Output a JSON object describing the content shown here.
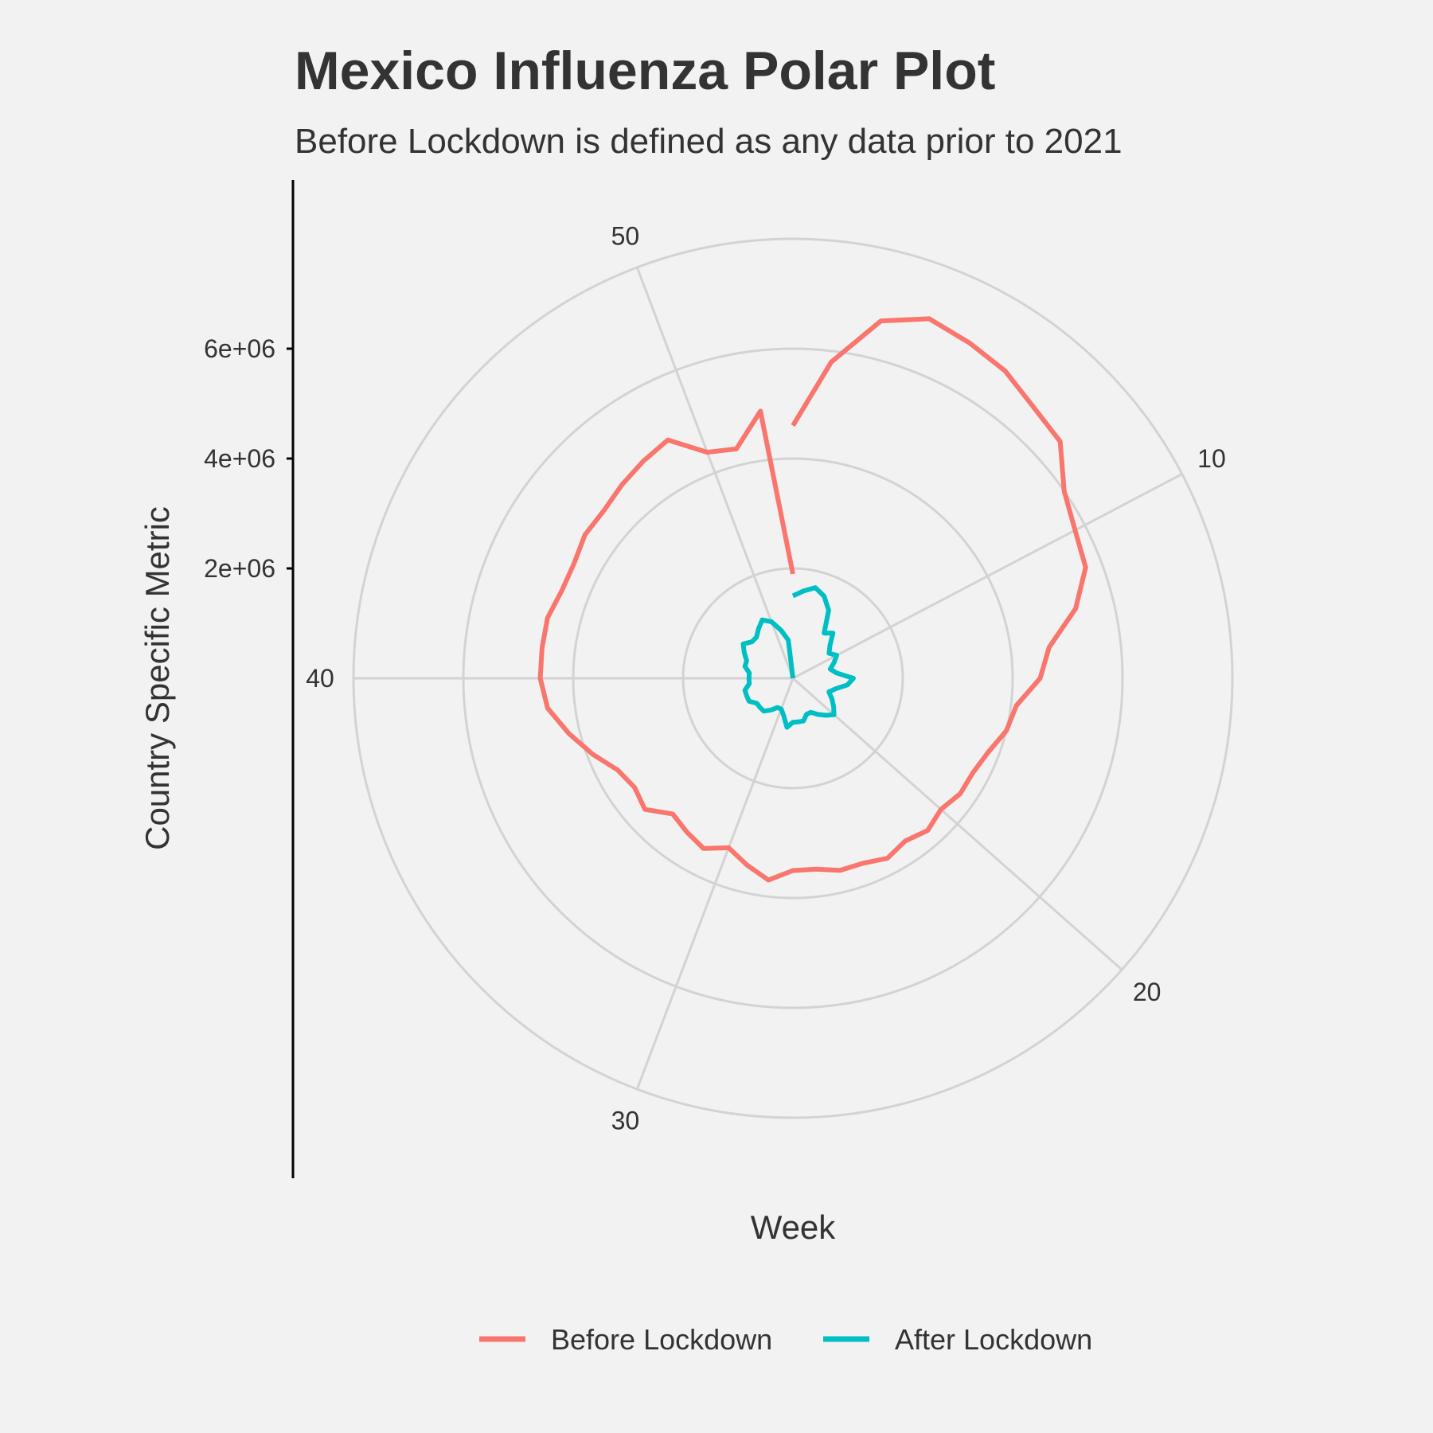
{
  "chart_data": {
    "type": "line",
    "coord": "polar",
    "title": "Mexico Influenza Polar Plot",
    "subtitle": "Before Lockdown is defined as any data prior to 2021",
    "xlabel": "Week",
    "ylabel": "Country Specific Metric",
    "theta_ticks": [
      10,
      20,
      30,
      40,
      50
    ],
    "theta_range": [
      1,
      53
    ],
    "r_ticks": [
      2000000,
      4000000,
      6000000
    ],
    "r_tick_labels": [
      "2e+06",
      "4e+06",
      "6e+06"
    ],
    "r_range": [
      0,
      8000000
    ],
    "grid": true,
    "legend_position": "bottom",
    "series": [
      {
        "name": "Before Lockdown",
        "color": "#F8766D",
        "x": [
          1,
          2,
          3,
          4,
          5,
          6,
          7,
          8,
          9,
          10,
          11,
          12,
          13,
          14,
          15,
          16,
          17,
          18,
          19,
          20,
          21,
          22,
          23,
          24,
          25,
          26,
          27,
          28,
          29,
          30,
          31,
          32,
          33,
          34,
          35,
          36,
          37,
          38,
          39,
          40,
          41,
          42,
          43,
          44,
          45,
          46,
          47,
          48,
          49,
          50,
          51,
          52,
          53
        ],
        "values": [
          4600000,
          5800000,
          6700000,
          7000000,
          6900000,
          6800000,
          6600000,
          6500000,
          6000000,
          5800000,
          5700000,
          5300000,
          4700000,
          4500000,
          4100000,
          4000000,
          3800000,
          3700000,
          3700000,
          3600000,
          3700000,
          3600000,
          3700000,
          3600000,
          3600000,
          3500000,
          3500000,
          3700000,
          3500000,
          3300000,
          3500000,
          3400000,
          3300000,
          3600000,
          3500000,
          3600000,
          3900000,
          4200000,
          4500000,
          4600000,
          4600000,
          4600000,
          4500000,
          4500000,
          4600000,
          4600000,
          4700000,
          4800000,
          4900000,
          4400000,
          4300000,
          4900000,
          1900000
        ]
      },
      {
        "name": "After Lockdown",
        "color": "#00BFC4",
        "x": [
          1,
          2,
          3,
          4,
          5,
          6,
          7,
          8,
          9,
          10,
          11,
          12,
          13,
          14,
          15,
          16,
          17,
          18,
          19,
          20,
          21,
          22,
          23,
          24,
          25,
          26,
          27,
          28,
          29,
          30,
          31,
          32,
          33,
          34,
          35,
          36,
          37,
          38,
          39,
          40,
          41,
          42,
          43,
          44,
          45,
          46,
          47,
          48,
          49,
          50,
          51,
          52,
          53
        ],
        "values": [
          1500000,
          1600000,
          1700000,
          1600000,
          1400000,
          1000000,
          1100000,
          900000,
          800000,
          900000,
          800000,
          700000,
          800000,
          1100000,
          1000000,
          800000,
          700000,
          800000,
          900000,
          1000000,
          900000,
          800000,
          700000,
          700000,
          800000,
          800000,
          800000,
          900000,
          700000,
          600000,
          600000,
          700000,
          800000,
          800000,
          800000,
          900000,
          900000,
          900000,
          800000,
          800000,
          800000,
          900000,
          900000,
          1000000,
          1100000,
          1000000,
          1000000,
          1100000,
          1200000,
          1100000,
          900000,
          700000,
          0
        ]
      }
    ]
  }
}
